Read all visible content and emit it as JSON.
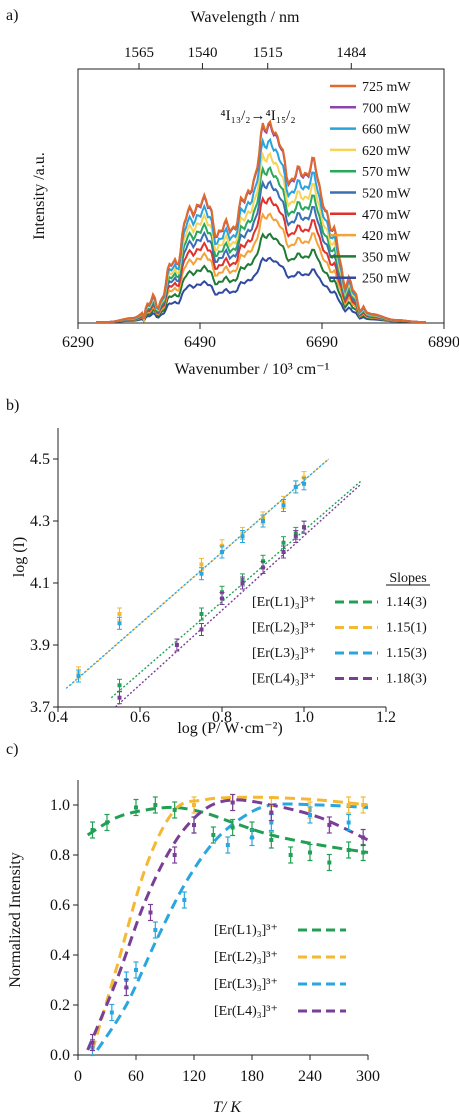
{
  "colors": {
    "axis": "#222222",
    "L1": "#21a055",
    "L2": "#f5b833",
    "L3": "#2aa6df",
    "L4": "#7a3e96"
  },
  "chart_data": [
    {
      "panel_label": "a)",
      "type": "line",
      "top_xlabel": "Wavelength / nm",
      "top_ticks": [
        "1565",
        "1540",
        "1515",
        "1484"
      ],
      "top_tick_positions_wavenumber": [
        6390,
        6494,
        6601,
        6738
      ],
      "xlabel": "Wavenumber / 10³ cm⁻¹",
      "ylabel": "Intensity /a.u.",
      "xlim": [
        6290,
        6890
      ],
      "x_ticks": [
        6290,
        6490,
        6690,
        6890
      ],
      "ylim": [
        0,
        1.25
      ],
      "annotation": "⁴I₁₃/₂→⁴I₁₅/₂",
      "legend_position": "top-right",
      "peak_profile_x": [
        6340,
        6380,
        6420,
        6450,
        6470,
        6490,
        6505,
        6520,
        6545,
        6560,
        6580,
        6595,
        6605,
        6620,
        6640,
        6660,
        6675,
        6690,
        6710,
        6730,
        6750,
        6770,
        6810,
        6850
      ],
      "peak_profile_y": [
        0.0,
        0.02,
        0.1,
        0.3,
        0.52,
        0.6,
        0.56,
        0.44,
        0.48,
        0.58,
        0.72,
        0.95,
        1.0,
        0.86,
        0.7,
        0.74,
        0.78,
        0.62,
        0.42,
        0.2,
        0.1,
        0.04,
        0.01,
        0.0
      ],
      "series": [
        {
          "name": "725 mW",
          "color": "#e06a2c",
          "scale": 1.0
        },
        {
          "name": "700 mW",
          "color": "#8e44ad",
          "scale": 0.99
        },
        {
          "name": "660 mW",
          "color": "#29a3dc",
          "scale": 0.91
        },
        {
          "name": "620 mW",
          "color": "#f7d35a",
          "scale": 0.84
        },
        {
          "name": "570 mW",
          "color": "#27a85b",
          "scale": 0.77
        },
        {
          "name": "520 mW",
          "color": "#3a6fb5",
          "scale": 0.7
        },
        {
          "name": "470 mW",
          "color": "#e0312b",
          "scale": 0.62
        },
        {
          "name": "420 mW",
          "color": "#f3a33a",
          "scale": 0.54
        },
        {
          "name": "350 mW",
          "color": "#1e7a35",
          "scale": 0.44
        },
        {
          "name": "250 mW",
          "color": "#2f4aa0",
          "scale": 0.32
        }
      ]
    },
    {
      "panel_label": "b)",
      "type": "scatter",
      "xlabel": "log (P/ W·cm⁻²)",
      "ylabel": "log (I)",
      "xlim": [
        0.4,
        1.2
      ],
      "ylim": [
        3.7,
        4.6
      ],
      "x_ticks": [
        "0.4",
        "0.6",
        "0.8",
        "1.0",
        "1.2"
      ],
      "y_ticks": [
        "3.7",
        "3.9",
        "4.1",
        "4.3",
        "4.5"
      ],
      "legend_header": "Slopes",
      "legend_position": "bottom-right",
      "series": [
        {
          "name": "[Er(L1)₃]³⁺",
          "slope_label": "1.14(3)",
          "color": "#21a055",
          "x": [
            0.55,
            0.75,
            0.8,
            0.85,
            0.9,
            0.95,
            0.98,
            1.0
          ],
          "y": [
            3.77,
            4.0,
            4.07,
            4.11,
            4.17,
            4.23,
            4.26,
            4.28
          ],
          "fit": [
            [
              0.53,
              3.73
            ],
            [
              1.14,
              4.43
            ]
          ]
        },
        {
          "name": "[Er(L2)₃]³⁺",
          "slope_label": "1.15(1)",
          "color": "#f5b833",
          "x": [
            0.45,
            0.55,
            0.75,
            0.8,
            0.85,
            0.9,
            0.95,
            0.98,
            1.0
          ],
          "y": [
            3.81,
            4.0,
            4.16,
            4.22,
            4.26,
            4.31,
            4.36,
            4.41,
            4.44
          ],
          "fit": [
            [
              0.43,
              3.77
            ],
            [
              1.06,
              4.5
            ]
          ]
        },
        {
          "name": "[Er(L3)₃]³⁺",
          "slope_label": "1.15(3)",
          "color": "#2aa6df",
          "x": [
            0.45,
            0.55,
            0.75,
            0.8,
            0.85,
            0.9,
            0.95,
            0.98,
            1.0
          ],
          "y": [
            3.8,
            3.97,
            4.13,
            4.2,
            4.25,
            4.3,
            4.35,
            4.41,
            4.42
          ],
          "fit": [
            [
              0.42,
              3.76
            ],
            [
              1.06,
              4.5
            ]
          ]
        },
        {
          "name": "[Er(L4)₃]³⁺",
          "slope_label": "1.18(3)",
          "color": "#7a3e96",
          "x": [
            0.55,
            0.69,
            0.75,
            0.8,
            0.85,
            0.9,
            0.95,
            0.98,
            1.0
          ],
          "y": [
            3.73,
            3.9,
            3.95,
            4.05,
            4.1,
            4.15,
            4.2,
            4.25,
            4.28
          ],
          "fit": [
            [
              0.54,
              3.7
            ],
            [
              1.14,
              4.42
            ]
          ]
        }
      ]
    },
    {
      "panel_label": "c)",
      "type": "scatter",
      "xlabel": "T/ K",
      "ylabel": "Normalized Intensity",
      "xlim": [
        0,
        300
      ],
      "ylim": [
        0,
        1.1
      ],
      "x_ticks": [
        "0",
        "60",
        "120",
        "180",
        "240",
        "300"
      ],
      "y_ticks": [
        "0.0",
        "0.2",
        "0.4",
        "0.6",
        "0.8",
        "1.0"
      ],
      "legend_position": "right",
      "series": [
        {
          "name": "[Er(L1)₃]³⁺",
          "color": "#21a055",
          "x": [
            15,
            30,
            60,
            80,
            100,
            120,
            140,
            160,
            180,
            200,
            220,
            240,
            260,
            280,
            295
          ],
          "y": [
            0.9,
            0.93,
            0.99,
            1.0,
            0.98,
            0.92,
            0.88,
            0.91,
            0.9,
            0.86,
            0.8,
            0.81,
            0.77,
            0.82,
            0.81
          ],
          "fit_x": [
            10,
            40,
            70,
            100,
            130,
            160,
            200,
            250,
            300
          ],
          "fit_y": [
            0.88,
            0.95,
            0.98,
            0.99,
            0.97,
            0.93,
            0.88,
            0.84,
            0.81
          ]
        },
        {
          "name": "[Er(L2)₃]³⁺",
          "color": "#f5b833",
          "x": [
            120,
            160,
            200,
            240,
            280,
            295
          ],
          "y": [
            1.0,
            1.01,
            1.0,
            0.98,
            1.0,
            1.0
          ],
          "fit_x": [
            15,
            40,
            70,
            100,
            130,
            160,
            200,
            250,
            300
          ],
          "fit_y": [
            0.02,
            0.35,
            0.75,
            0.98,
            1.02,
            1.03,
            1.03,
            1.02,
            1.0
          ]
        },
        {
          "name": "[Er(L3)₃]³⁺",
          "color": "#2aa6df",
          "x": [
            15,
            35,
            50,
            60,
            80,
            110,
            155,
            180,
            200,
            240,
            280
          ],
          "y": [
            0.03,
            0.17,
            0.3,
            0.34,
            0.5,
            0.62,
            0.84,
            0.87,
            0.93,
            0.96,
            0.93
          ],
          "fit_x": [
            20,
            50,
            80,
            110,
            140,
            170,
            200,
            250,
            300
          ],
          "fit_y": [
            0.02,
            0.2,
            0.45,
            0.68,
            0.85,
            0.95,
            1.0,
            1.0,
            0.99
          ]
        },
        {
          "name": "[Er(L4)₃]³⁺",
          "color": "#7a3e96",
          "x": [
            15,
            50,
            75,
            100,
            120,
            160,
            200,
            260,
            295
          ],
          "y": [
            0.05,
            0.27,
            0.57,
            0.8,
            0.92,
            1.01,
            0.97,
            0.92,
            0.87
          ],
          "fit_x": [
            10,
            40,
            70,
            100,
            130,
            160,
            200,
            250,
            300
          ],
          "fit_y": [
            0.02,
            0.3,
            0.62,
            0.85,
            0.98,
            1.02,
            1.0,
            0.95,
            0.86
          ]
        }
      ]
    }
  ]
}
